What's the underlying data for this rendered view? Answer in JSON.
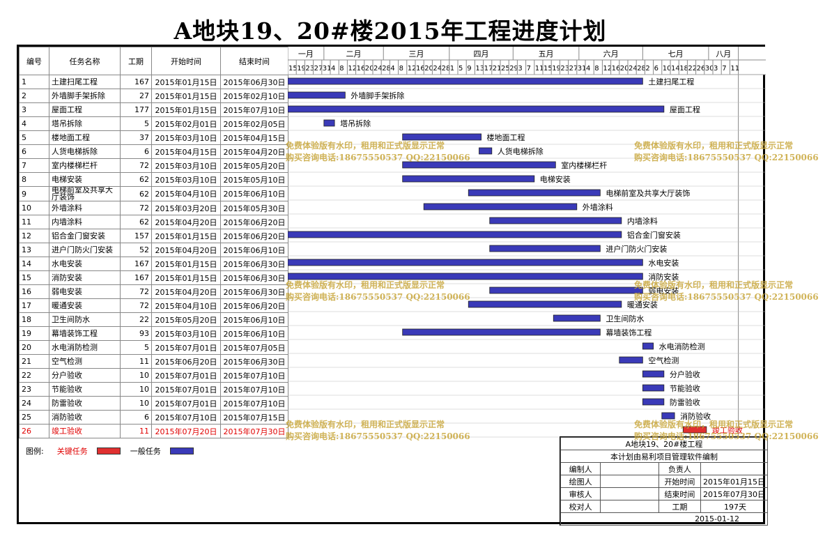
{
  "title": "A地块19、20#楼2015年工程进度计划",
  "headers": {
    "id": "编号",
    "name": "任务名称",
    "duration": "工期",
    "start": "开始时间",
    "end": "结束时间"
  },
  "colors": {
    "normal_bar": "#3a3ab8",
    "critical_bar": "#e03030",
    "critical_text": "#e00000",
    "watermark": "#c8a63a"
  },
  "chart_data": {
    "type": "gantt",
    "title": "A地块19、20#楼2015年工程进度计划",
    "timeline_start": "2015-01-15",
    "timeline_end": "2015-08-15",
    "months": [
      {
        "label": "一月",
        "start": "2015-01-15"
      },
      {
        "label": "二月",
        "start": "2015-02-01"
      },
      {
        "label": "三月",
        "start": "2015-03-01"
      },
      {
        "label": "四月",
        "start": "2015-04-01"
      },
      {
        "label": "五月",
        "start": "2015-05-01"
      },
      {
        "label": "六月",
        "start": "2015-06-01"
      },
      {
        "label": "七月",
        "start": "2015-07-01"
      },
      {
        "label": "八月",
        "start": "2015-08-01"
      }
    ],
    "day_ticks": [
      "15",
      "19",
      "23",
      "27",
      "31",
      "4",
      "8",
      "12",
      "16",
      "20",
      "24",
      "28",
      "4",
      "8",
      "12",
      "16",
      "20",
      "24",
      "28",
      "1",
      "5",
      "9",
      "13",
      "17",
      "21",
      "25",
      "29",
      "3",
      "7",
      "11",
      "15",
      "19",
      "23",
      "27",
      "31",
      "4",
      "8",
      "12",
      "16",
      "20",
      "24",
      "28",
      "2",
      "6",
      "10",
      "14",
      "18",
      "22",
      "26",
      "30",
      "3",
      "7",
      "11"
    ],
    "day_tick_dates": [
      "2015-01-15",
      "2015-01-19",
      "2015-01-23",
      "2015-01-27",
      "2015-01-31",
      "2015-02-04",
      "2015-02-08",
      "2015-02-12",
      "2015-02-16",
      "2015-02-20",
      "2015-02-24",
      "2015-02-28",
      "2015-03-04",
      "2015-03-08",
      "2015-03-12",
      "2015-03-16",
      "2015-03-20",
      "2015-03-24",
      "2015-03-28",
      "2015-04-01",
      "2015-04-05",
      "2015-04-09",
      "2015-04-13",
      "2015-04-17",
      "2015-04-21",
      "2015-04-25",
      "2015-04-29",
      "2015-05-03",
      "2015-05-07",
      "2015-05-11",
      "2015-05-15",
      "2015-05-19",
      "2015-05-23",
      "2015-05-27",
      "2015-05-31",
      "2015-06-04",
      "2015-06-08",
      "2015-06-12",
      "2015-06-16",
      "2015-06-20",
      "2015-06-24",
      "2015-06-28",
      "2015-07-02",
      "2015-07-06",
      "2015-07-10",
      "2015-07-14",
      "2015-07-18",
      "2015-07-22",
      "2015-07-26",
      "2015-07-30",
      "2015-08-03",
      "2015-08-07",
      "2015-08-11"
    ],
    "tasks": [
      {
        "id": "1",
        "name": "土建扫尾工程",
        "duration": "167",
        "start": "2015年01月15日",
        "end": "2015年06月30日",
        "start_iso": "2015-01-15",
        "end_iso": "2015-06-30",
        "critical": false
      },
      {
        "id": "2",
        "name": "外墙脚手架拆除",
        "duration": "27",
        "start": "2015年01月15日",
        "end": "2015年02月10日",
        "start_iso": "2015-01-15",
        "end_iso": "2015-02-10",
        "critical": false
      },
      {
        "id": "3",
        "name": "屋面工程",
        "duration": "177",
        "start": "2015年01月15日",
        "end": "2015年07月10日",
        "start_iso": "2015-01-15",
        "end_iso": "2015-07-10",
        "critical": false
      },
      {
        "id": "4",
        "name": "塔吊拆除",
        "duration": "5",
        "start": "2015年02月01日",
        "end": "2015年02月05日",
        "start_iso": "2015-02-01",
        "end_iso": "2015-02-05",
        "critical": false
      },
      {
        "id": "5",
        "name": "楼地面工程",
        "duration": "37",
        "start": "2015年03月10日",
        "end": "2015年04月15日",
        "start_iso": "2015-03-10",
        "end_iso": "2015-04-15",
        "critical": false
      },
      {
        "id": "6",
        "name": "人货电梯拆除",
        "duration": "6",
        "start": "2015年04月15日",
        "end": "2015年04月20日",
        "start_iso": "2015-04-15",
        "end_iso": "2015-04-20",
        "critical": false
      },
      {
        "id": "7",
        "name": "室内楼梯栏杆",
        "duration": "72",
        "start": "2015年03月10日",
        "end": "2015年05月20日",
        "start_iso": "2015-03-10",
        "end_iso": "2015-05-20",
        "critical": false
      },
      {
        "id": "8",
        "name": "电梯安装",
        "duration": "62",
        "start": "2015年03月10日",
        "end": "2015年05月10日",
        "start_iso": "2015-03-10",
        "end_iso": "2015-05-10",
        "critical": false
      },
      {
        "id": "9",
        "name": "电梯前室及共享大厅装饰",
        "duration": "62",
        "start": "2015年04月10日",
        "end": "2015年06月10日",
        "start_iso": "2015-04-10",
        "end_iso": "2015-06-10",
        "critical": false
      },
      {
        "id": "10",
        "name": "外墙涂料",
        "duration": "72",
        "start": "2015年03月20日",
        "end": "2015年05月30日",
        "start_iso": "2015-03-20",
        "end_iso": "2015-05-30",
        "critical": false
      },
      {
        "id": "11",
        "name": "内墙涂料",
        "duration": "62",
        "start": "2015年04月20日",
        "end": "2015年06月20日",
        "start_iso": "2015-04-20",
        "end_iso": "2015-06-20",
        "critical": false
      },
      {
        "id": "12",
        "name": "铝合金门窗安装",
        "duration": "157",
        "start": "2015年01月15日",
        "end": "2015年06月20日",
        "start_iso": "2015-01-15",
        "end_iso": "2015-06-20",
        "critical": false
      },
      {
        "id": "13",
        "name": "进户门防火门安装",
        "duration": "52",
        "start": "2015年04月20日",
        "end": "2015年06月10日",
        "start_iso": "2015-04-20",
        "end_iso": "2015-06-10",
        "critical": false
      },
      {
        "id": "14",
        "name": "水电安装",
        "duration": "167",
        "start": "2015年01月15日",
        "end": "2015年06月30日",
        "start_iso": "2015-01-15",
        "end_iso": "2015-06-30",
        "critical": false
      },
      {
        "id": "15",
        "name": "消防安装",
        "duration": "167",
        "start": "2015年01月15日",
        "end": "2015年06月30日",
        "start_iso": "2015-01-15",
        "end_iso": "2015-06-30",
        "critical": false
      },
      {
        "id": "16",
        "name": "弱电安装",
        "duration": "72",
        "start": "2015年04月20日",
        "end": "2015年06月30日",
        "start_iso": "2015-04-20",
        "end_iso": "2015-06-30",
        "critical": false
      },
      {
        "id": "17",
        "name": "暖通安装",
        "duration": "72",
        "start": "2015年04月10日",
        "end": "2015年06月20日",
        "start_iso": "2015-04-10",
        "end_iso": "2015-06-20",
        "critical": false
      },
      {
        "id": "18",
        "name": "卫生间防水",
        "duration": "22",
        "start": "2015年05月20日",
        "end": "2015年06月10日",
        "start_iso": "2015-05-20",
        "end_iso": "2015-06-10",
        "critical": false
      },
      {
        "id": "19",
        "name": "幕墙装饰工程",
        "duration": "93",
        "start": "2015年03月10日",
        "end": "2015年06月10日",
        "start_iso": "2015-03-10",
        "end_iso": "2015-06-10",
        "critical": false
      },
      {
        "id": "20",
        "name": "水电消防检测",
        "duration": "5",
        "start": "2015年07月01日",
        "end": "2015年07月05日",
        "start_iso": "2015-07-01",
        "end_iso": "2015-07-05",
        "critical": false
      },
      {
        "id": "21",
        "name": "空气检测",
        "duration": "11",
        "start": "2015年06月20日",
        "end": "2015年06月30日",
        "start_iso": "2015-06-20",
        "end_iso": "2015-06-30",
        "critical": false
      },
      {
        "id": "22",
        "name": "分户验收",
        "duration": "10",
        "start": "2015年07月01日",
        "end": "2015年07月10日",
        "start_iso": "2015-07-01",
        "end_iso": "2015-07-10",
        "critical": false
      },
      {
        "id": "23",
        "name": "节能验收",
        "duration": "10",
        "start": "2015年07月01日",
        "end": "2015年07月10日",
        "start_iso": "2015-07-01",
        "end_iso": "2015-07-10",
        "critical": false
      },
      {
        "id": "24",
        "name": "防雷验收",
        "duration": "10",
        "start": "2015年07月01日",
        "end": "2015年07月10日",
        "start_iso": "2015-07-01",
        "end_iso": "2015-07-10",
        "critical": false
      },
      {
        "id": "25",
        "name": "消防验收",
        "duration": "6",
        "start": "2015年07月10日",
        "end": "2015年07月15日",
        "start_iso": "2015-07-10",
        "end_iso": "2015-07-15",
        "critical": false
      },
      {
        "id": "26",
        "name": "竣工验收",
        "duration": "11",
        "start": "2015年07月20日",
        "end": "2015年07月30日",
        "start_iso": "2015-07-20",
        "end_iso": "2015-07-30",
        "critical": true
      }
    ]
  },
  "legend": {
    "label": "图例:",
    "critical": "关键任务",
    "normal": "一般任务"
  },
  "info": {
    "project": "A地块19、20#楼工程",
    "software": "本计划由易利项目管理软件编制",
    "editor_label": "编制人",
    "editor": "",
    "owner_label": "负责人",
    "owner": "",
    "drawer_label": "绘图人",
    "drawer": "",
    "start_label": "开始时间",
    "start": "2015年01月15日",
    "reviewer_label": "审核人",
    "reviewer": "",
    "end_label": "结束时间",
    "end": "2015年07月30日",
    "checker_label": "校对人",
    "checker": "",
    "duration_label": "工期",
    "duration": "197天",
    "date": "2015-01-12"
  },
  "watermark": {
    "line1": "免费体验版有水印，租用和正式版显示正常",
    "line2": "购买咨询电话:18675550537 QQ:22150066"
  }
}
